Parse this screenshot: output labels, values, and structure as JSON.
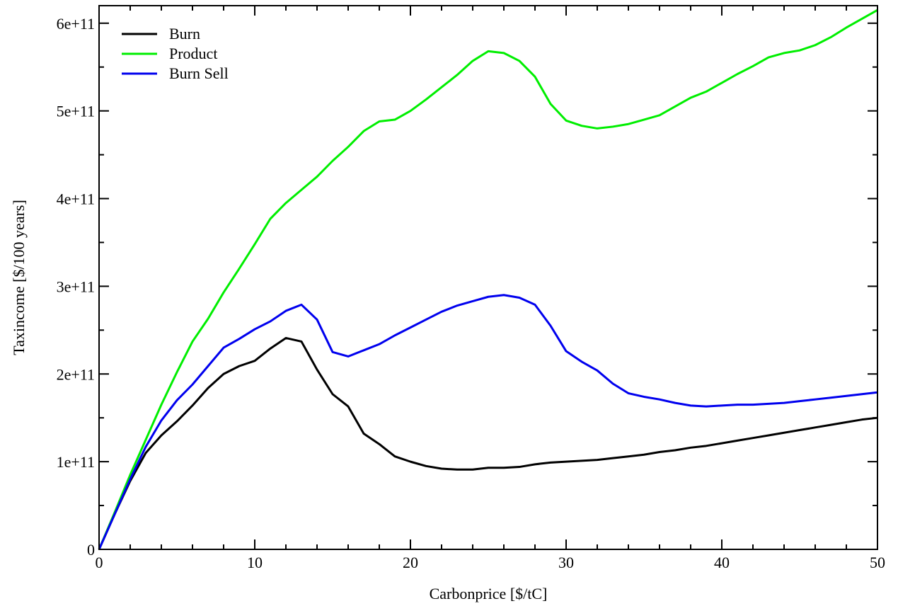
{
  "chart_data": {
    "type": "line",
    "xlabel": "Carbonprice [$/tC]",
    "ylabel": "Taxincome [$/100 years]",
    "xlim": [
      0,
      50
    ],
    "ylim": [
      0,
      620000000000
    ],
    "x_ticks": [
      0,
      10,
      20,
      30,
      40,
      50
    ],
    "x_tick_labels": [
      "0",
      "10",
      "20",
      "30",
      "40",
      "50"
    ],
    "y_ticks": [
      0,
      100000000000,
      200000000000,
      300000000000,
      400000000000,
      500000000000,
      600000000000
    ],
    "y_tick_labels": [
      "0",
      "1e+11",
      "2e+11",
      "3e+11",
      "4e+11",
      "5e+11",
      "6e+11"
    ],
    "grid": false,
    "legend_position": "top-left",
    "x": [
      0,
      1,
      2,
      3,
      4,
      5,
      6,
      7,
      8,
      9,
      10,
      11,
      12,
      13,
      14,
      15,
      16,
      17,
      18,
      19,
      20,
      21,
      22,
      23,
      24,
      25,
      26,
      27,
      28,
      29,
      30,
      31,
      32,
      33,
      34,
      35,
      36,
      37,
      38,
      39,
      40,
      41,
      42,
      43,
      44,
      45,
      46,
      47,
      48,
      49,
      50
    ],
    "series": [
      {
        "name": "Burn",
        "color": "#000000",
        "values": [
          0,
          40,
          78,
          110,
          130,
          146,
          164,
          184,
          200,
          209,
          215,
          229,
          241,
          237,
          205,
          177,
          163,
          132,
          120,
          106,
          100,
          95,
          92,
          91,
          91,
          93,
          93,
          94,
          97,
          99,
          100,
          101,
          102,
          104,
          106,
          108,
          111,
          113,
          116,
          118,
          121,
          124,
          127,
          130,
          133,
          136,
          139,
          142,
          145,
          148,
          150
        ]
      },
      {
        "name": "Product",
        "color": "#00ee00",
        "values": [
          0,
          42,
          85,
          125,
          165,
          202,
          237,
          263,
          293,
          320,
          348,
          377,
          395,
          410,
          425,
          443,
          459,
          477,
          488,
          490,
          500,
          513,
          527,
          541,
          557,
          568,
          566,
          557,
          539,
          508,
          489,
          483,
          480,
          482,
          485,
          490,
          495,
          505,
          515,
          522,
          532,
          542,
          551,
          561,
          566,
          569,
          575,
          584,
          595,
          605,
          615
        ]
      },
      {
        "name": "Burn Sell",
        "color": "#0000ee",
        "values": [
          0,
          40,
          80,
          117,
          147,
          170,
          188,
          209,
          230,
          240,
          251,
          260,
          272,
          279,
          262,
          225,
          220,
          227,
          234,
          244,
          253,
          262,
          271,
          278,
          283,
          288,
          290,
          287,
          279,
          255,
          226,
          214,
          204,
          189,
          178,
          174,
          171,
          167,
          164,
          163,
          164,
          165,
          165,
          166,
          167,
          169,
          171,
          173,
          175,
          177,
          179
        ]
      }
    ],
    "value_unit_multiplier": 1000000000
  }
}
